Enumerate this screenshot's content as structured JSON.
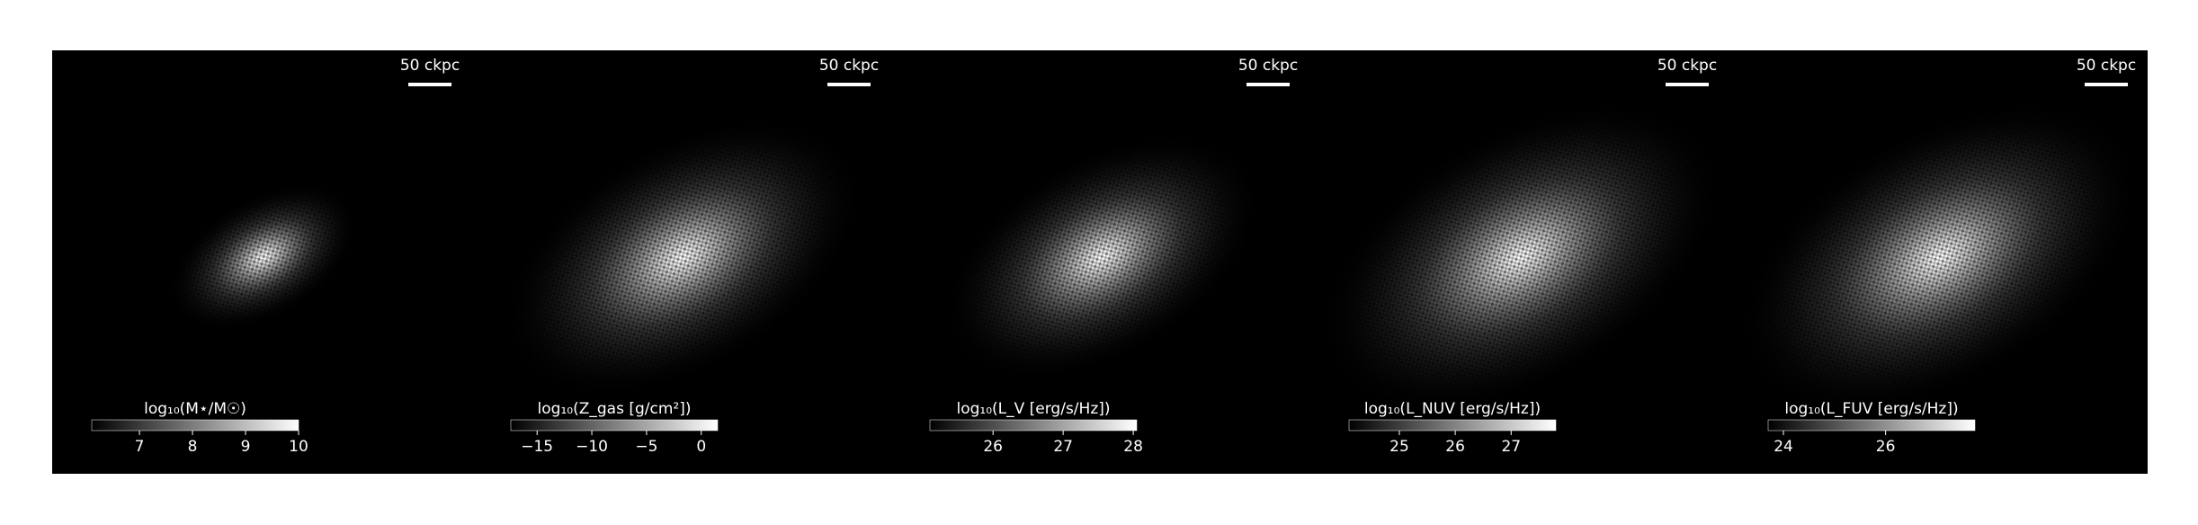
{
  "panels": [
    {
      "scale_bar": "50 ckpc",
      "colorbar": {
        "label": "log₁₀(M⋆/M☉)",
        "clim": [
          6.1,
          10
        ],
        "ticks": [
          7,
          8,
          9,
          10
        ]
      }
    },
    {
      "scale_bar": "50 ckpc",
      "colorbar": {
        "label": "log₁₀(Z_gas [g/cm²])",
        "clim": [
          -17.4,
          1.5
        ],
        "ticks": [
          {
            "value": -15,
            "label": "−15"
          },
          {
            "value": -10,
            "label": "−10"
          },
          {
            "value": -5,
            "label": "−5"
          },
          0
        ]
      }
    },
    {
      "scale_bar": "50 ckpc",
      "colorbar": {
        "label": "log₁₀(L_V [erg/s/Hz])",
        "clim": [
          25.1,
          28.05
        ],
        "ticks": [
          26,
          27,
          28
        ]
      }
    },
    {
      "scale_bar": "50 ckpc",
      "colorbar": {
        "label": "log₁₀(L_NUV [erg/s/Hz])",
        "clim": [
          24.1,
          27.8
        ],
        "ticks": [
          25,
          26,
          27
        ]
      }
    },
    {
      "scale_bar": "50 ckpc",
      "colorbar": {
        "label": "log₁₀(L_FUV [erg/s/Hz])",
        "clim": [
          23.7,
          27.75
        ],
        "ticks": [
          24,
          26
        ]
      }
    }
  ]
}
